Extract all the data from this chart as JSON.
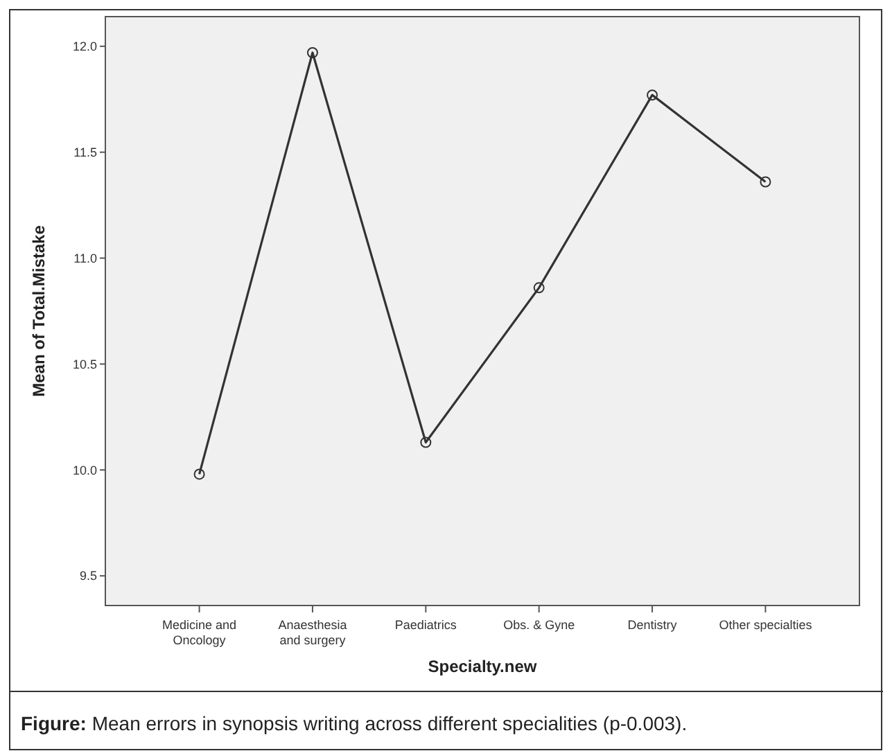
{
  "chart_data": {
    "type": "line",
    "xlabel": "Specialty.new",
    "ylabel": "Mean of Total.Mistake",
    "categories": [
      "Medicine and\nOncology",
      "Anaesthesia\nand surgery",
      "Paediatrics",
      "Obs. & Gyne",
      "Dentistry",
      "Other specialties"
    ],
    "series": [
      {
        "color": "#333333",
        "values": [
          9.98,
          11.97,
          10.13,
          10.86,
          11.77,
          11.36
        ]
      }
    ],
    "ylim": [
      9.36,
      12.14
    ],
    "yticks": [
      {
        "value": 9.5,
        "label": "9.5"
      },
      {
        "value": 10,
        "label": "10.0"
      },
      {
        "value": 10.5,
        "label": "10.5"
      },
      {
        "value": 11,
        "label": "11.0"
      },
      {
        "value": 11.5,
        "label": "11.5"
      },
      {
        "value": 12,
        "label": "12.0"
      }
    ],
    "grid": false,
    "marker": "circle",
    "line_style": "solid",
    "annotations": [
      "Figure: Mean errors in synopsis writing across different specialities (p-0.003)."
    ]
  }
}
